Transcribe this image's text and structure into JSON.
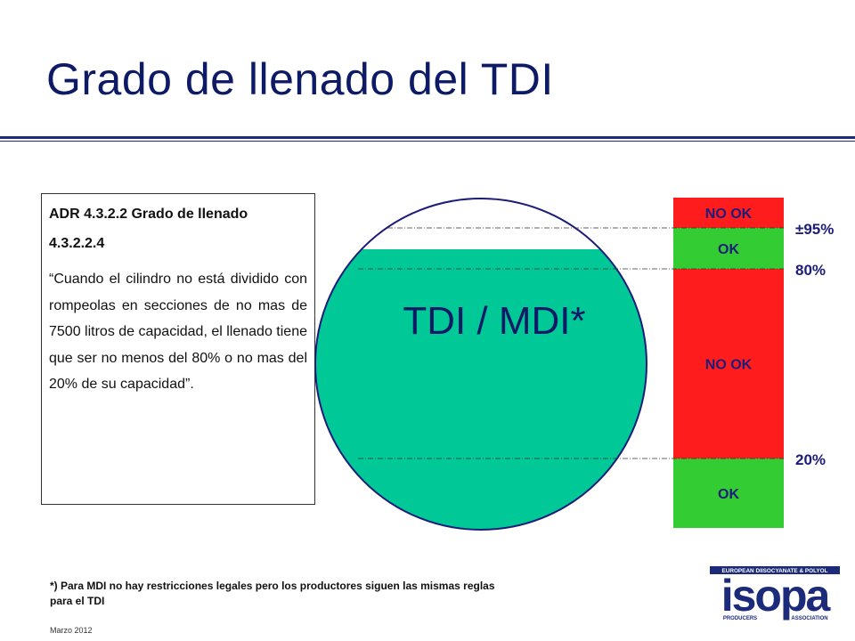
{
  "slide": {
    "title": "Grado de llenado del  TDI",
    "footer_date": "Marzo 2012"
  },
  "textbox": {
    "heading": "ADR 4.3.2.2 Grado de llenado",
    "subheading": "4.3.2.2.4",
    "quote": "“Cuando el cilindro no está dividido con rompeolas en secciones de no mas de 7500 litros de capacidad, el llenado tiene que ser no menos del 80% o no mas del 20% de su capacidad”."
  },
  "diagram": {
    "tank_label": "TDI / MDI*",
    "tank_fill_color": "#00c896",
    "tank_outline_color": "#1c1c7a",
    "zones": [
      {
        "label": "NO OK",
        "color": "#ff1c1c",
        "from_pct": 100,
        "to_pct": 95
      },
      {
        "label": "OK",
        "color": "#33cc33",
        "from_pct": 95,
        "to_pct": 80
      },
      {
        "label": "NO OK",
        "color": "#ff1c1c",
        "from_pct": 80,
        "to_pct": 20
      },
      {
        "label": "OK",
        "color": "#33cc33",
        "from_pct": 20,
        "to_pct": 0
      }
    ],
    "thresholds": [
      {
        "label": "±95%",
        "value_pct": 95
      },
      {
        "label": "80%",
        "value_pct": 80
      },
      {
        "label": "20%",
        "value_pct": 20
      }
    ]
  },
  "footnote": {
    "text": "*) Para MDI no hay restricciones legales pero los productores siguen las mismas reglas para el TDI"
  },
  "logo": {
    "main": "isopa",
    "top_line": "EUROPEAN DIISOCYANATE & POLYOL",
    "bottom_left": "PRODUCERS",
    "bottom_right": "ASSOCIATION",
    "color": "#1c2a7a"
  }
}
